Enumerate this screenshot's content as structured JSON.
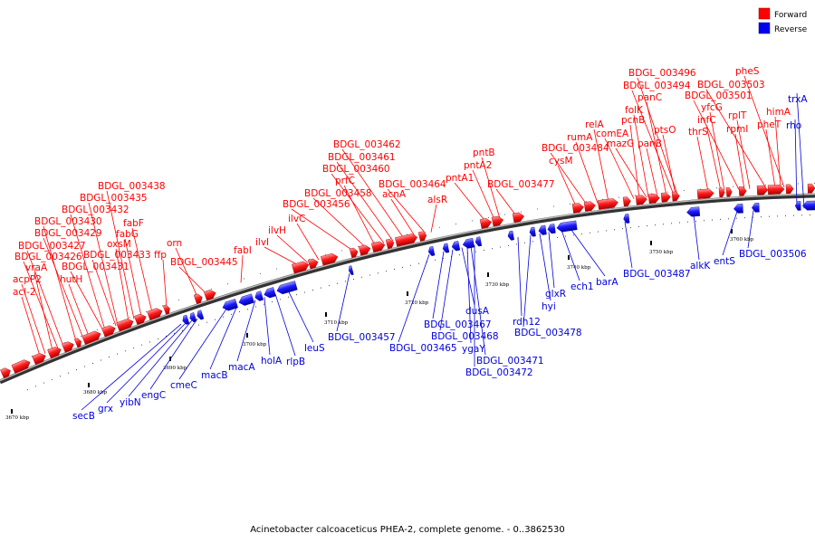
{
  "legend": {
    "forward": "Forward",
    "reverse": "Reverse",
    "forward_color": "#ff0000",
    "reverse_color": "#0000ee"
  },
  "caption": "Acinetobacter calcoaceticus PHEA-2, complete genome. - 0..3862530",
  "ticks": [
    "3670 kbp",
    "3680 kbp",
    "3690 kbp",
    "3700 kbp",
    "3710 kbp",
    "3720 kbp",
    "3730 kbp",
    "3740 kbp",
    "3750 kbp",
    "3760 kbp"
  ],
  "forward_genes": [
    "acl-2",
    "acpP2",
    "vraA",
    "BDGL_003427",
    "BDGL_003426",
    "hutH",
    "BDGL_003431",
    "BDGL_003430",
    "BDGL_003429",
    "BDGL_003432",
    "BDGL_003435",
    "BDGL_003438",
    "BDGL_003433",
    "oxsM",
    "fabG",
    "fabF",
    "ffp",
    "orn",
    "BDGL_003445",
    "fabI",
    "ilvI",
    "ilvH",
    "ilvC",
    "BDGL_003456",
    "BDGL_003458",
    "prfC",
    "BDGL_003460",
    "BDGL_003461",
    "BDGL_003462",
    "acnA",
    "BDGL_003464",
    "alsR",
    "pntA1",
    "pntA2",
    "pntB",
    "BDGL_003477",
    "cysM",
    "BDGL_003484",
    "rumA",
    "relA",
    "comEA",
    "pcnB",
    "mazG",
    "folK",
    "panB",
    "panC",
    "BDGL_003494",
    "BDGL_003496",
    "ptsO",
    "thrS",
    "infC",
    "yfcG",
    "BDGL_003501",
    "rpmI",
    "rplT",
    "BDGL_003503",
    "pheT",
    "himA",
    "pheS"
  ],
  "reverse_genes": [
    "secB",
    "grx",
    "yibN",
    "engC",
    "cmeC",
    "macB",
    "macA",
    "holA",
    "rlpB",
    "leuS",
    "BDGL_003457",
    "BDGL_003465",
    "BDGL_003467",
    "BDGL_003468",
    "dusA",
    "ygaY",
    "BDGL_003471",
    "BDGL_003472",
    "rdh12",
    "BDGL_003478",
    "hyi",
    "glxR",
    "ech1",
    "barA",
    "BDGL_003487",
    "alkK",
    "entS",
    "BDGL_003506",
    "rho",
    "trxA"
  ]
}
